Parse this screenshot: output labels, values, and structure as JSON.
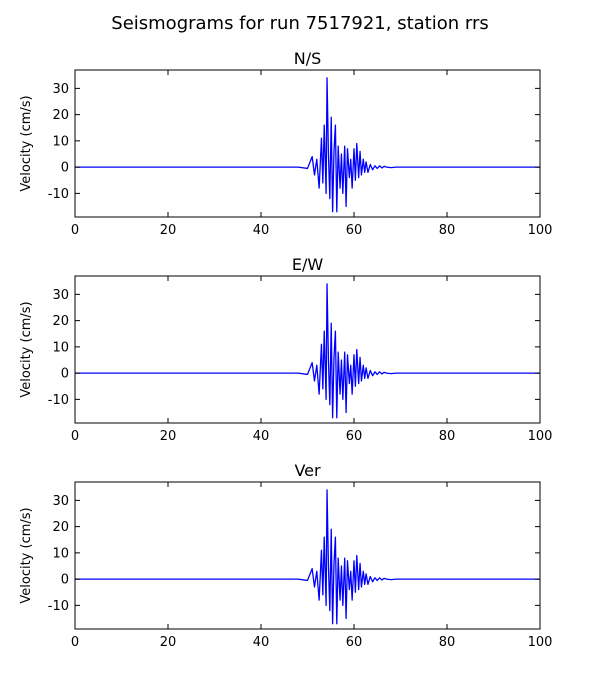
{
  "figure": {
    "title": "Seismograms for run 7517921, station rrs"
  },
  "chart_data": [
    {
      "type": "line",
      "title": "N/S",
      "xlabel": "",
      "ylabel": "Velocity (cm/s)",
      "xlim": [
        0,
        100
      ],
      "ylim": [
        -19,
        37
      ],
      "xticks": [
        0,
        20,
        40,
        60,
        80,
        100
      ],
      "yticks": [
        -10,
        0,
        10,
        20,
        30
      ],
      "grid": false,
      "color": "#0000ff",
      "x": [
        0,
        40,
        48,
        50,
        51,
        51.5,
        52,
        52.5,
        53,
        53.3,
        53.6,
        54,
        54.2,
        54.5,
        54.8,
        55.1,
        55.4,
        55.7,
        56,
        56.3,
        56.6,
        57,
        57.3,
        57.6,
        58,
        58.3,
        58.6,
        59,
        59.3,
        59.6,
        60,
        60.3,
        60.6,
        61,
        61.3,
        61.6,
        62,
        62.3,
        62.6,
        63,
        63.5,
        64,
        64.5,
        65,
        65.5,
        66,
        66.5,
        67,
        68,
        69,
        70,
        75,
        100
      ],
      "y": [
        0,
        0,
        0,
        -0.5,
        4,
        -3,
        3,
        -8,
        11,
        -6,
        16,
        -10,
        34,
        5,
        -12,
        19,
        -17,
        6,
        16,
        -17,
        8,
        -8,
        5,
        -10,
        8,
        -15,
        7,
        -4,
        3,
        -8,
        7,
        -5,
        9,
        -4,
        6,
        -3,
        3,
        -2,
        2,
        -2,
        1,
        -1,
        0.5,
        -0.5,
        0.5,
        -0.3,
        0.3,
        0,
        -0.2,
        0,
        0,
        0,
        0
      ]
    },
    {
      "type": "line",
      "title": "E/W",
      "xlabel": "",
      "ylabel": "Velocity (cm/s)",
      "xlim": [
        0,
        100
      ],
      "ylim": [
        -19,
        37
      ],
      "xticks": [
        0,
        20,
        40,
        60,
        80,
        100
      ],
      "yticks": [
        -10,
        0,
        10,
        20,
        30
      ],
      "grid": false,
      "color": "#0000ff",
      "x": [
        0,
        40,
        48,
        50,
        51,
        51.5,
        52,
        52.5,
        53,
        53.3,
        53.6,
        54,
        54.2,
        54.5,
        54.8,
        55.1,
        55.4,
        55.7,
        56,
        56.3,
        56.6,
        57,
        57.3,
        57.6,
        58,
        58.3,
        58.6,
        59,
        59.3,
        59.6,
        60,
        60.3,
        60.6,
        61,
        61.3,
        61.6,
        62,
        62.3,
        62.6,
        63,
        63.5,
        64,
        64.5,
        65,
        65.5,
        66,
        66.5,
        67,
        68,
        69,
        70,
        75,
        100
      ],
      "y": [
        0,
        0,
        0,
        -0.5,
        4,
        -3,
        3,
        -8,
        11,
        -6,
        16,
        -10,
        34,
        5,
        -12,
        19,
        -17,
        6,
        16,
        -17,
        8,
        -8,
        5,
        -10,
        8,
        -15,
        7,
        -4,
        3,
        -8,
        7,
        -5,
        9,
        -4,
        6,
        -3,
        3,
        -2,
        2,
        -2,
        1,
        -1,
        0.5,
        -0.5,
        0.5,
        -0.3,
        0.3,
        0,
        -0.2,
        0,
        0,
        0,
        0
      ]
    },
    {
      "type": "line",
      "title": "Ver",
      "xlabel": "",
      "ylabel": "Velocity (cm/s)",
      "xlim": [
        0,
        100
      ],
      "ylim": [
        -19,
        37
      ],
      "xticks": [
        0,
        20,
        40,
        60,
        80,
        100
      ],
      "yticks": [
        -10,
        0,
        10,
        20,
        30
      ],
      "grid": false,
      "color": "#0000ff",
      "x": [
        0,
        40,
        48,
        50,
        51,
        51.5,
        52,
        52.5,
        53,
        53.3,
        53.6,
        54,
        54.2,
        54.5,
        54.8,
        55.1,
        55.4,
        55.7,
        56,
        56.3,
        56.6,
        57,
        57.3,
        57.6,
        58,
        58.3,
        58.6,
        59,
        59.3,
        59.6,
        60,
        60.3,
        60.6,
        61,
        61.3,
        61.6,
        62,
        62.3,
        62.6,
        63,
        63.5,
        64,
        64.5,
        65,
        65.5,
        66,
        66.5,
        67,
        68,
        69,
        70,
        75,
        100
      ],
      "y": [
        0,
        0,
        0,
        -0.5,
        4,
        -3,
        3,
        -8,
        11,
        -6,
        16,
        -10,
        34,
        5,
        -12,
        19,
        -17,
        6,
        16,
        -17,
        8,
        -8,
        5,
        -10,
        8,
        -15,
        7,
        -4,
        3,
        -8,
        7,
        -5,
        9,
        -4,
        6,
        -3,
        3,
        -2,
        2,
        -2,
        1,
        -1,
        0.5,
        -0.5,
        0.5,
        -0.3,
        0.3,
        0,
        -0.2,
        0,
        0,
        0,
        0
      ]
    }
  ]
}
